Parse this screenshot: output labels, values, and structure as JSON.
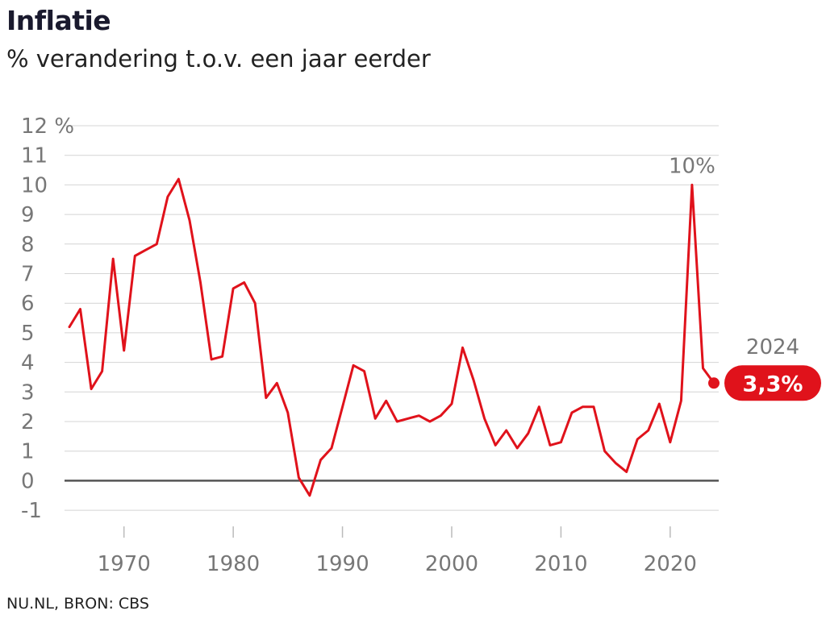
{
  "header": {
    "title": "Inflatie",
    "subtitle": "% verandering t.o.v. een jaar eerder"
  },
  "footer": {
    "source": "NU.NL, BRON: CBS"
  },
  "colors": {
    "series": "#e0121b",
    "grid": "#d4d4d4",
    "zero_line": "#555555",
    "tick_text": "#777777",
    "badge": "#e0121b"
  },
  "annotations": {
    "peak_label": "10%",
    "last_year_label": "2024",
    "last_value_badge": "3,3%"
  },
  "chart_data": {
    "type": "line",
    "title": "Inflatie",
    "subtitle": "% verandering t.o.v. een jaar eerder",
    "xlabel": "",
    "ylabel": "",
    "ylim": [
      -1,
      12
    ],
    "xlim": [
      1965,
      2024
    ],
    "grid": true,
    "y_ticks": [
      -1,
      0,
      1,
      2,
      3,
      4,
      5,
      6,
      7,
      8,
      9,
      10,
      11,
      12
    ],
    "y_tick_labels": [
      "-1",
      "0",
      "1",
      "2",
      "3",
      "4",
      "5",
      "6",
      "7",
      "8",
      "9",
      "10",
      "11",
      "12 %"
    ],
    "x_ticks": [
      1970,
      1980,
      1990,
      2000,
      2010,
      2020
    ],
    "x_tick_labels": [
      "1970",
      "1980",
      "1990",
      "2000",
      "2010",
      "2020"
    ],
    "series": [
      {
        "x": [
          1965,
          1966,
          1967,
          1968,
          1969,
          1970,
          1971,
          1972,
          1973,
          1974,
          1975,
          1976,
          1977,
          1978,
          1979,
          1980,
          1981,
          1982,
          1983,
          1984,
          1985,
          1986,
          1987,
          1988,
          1989,
          1990,
          1991,
          1992,
          1993,
          1994,
          1995,
          1996,
          1997,
          1998,
          1999,
          2000,
          2001,
          2002,
          2003,
          2004,
          2005,
          2006,
          2007,
          2008,
          2009,
          2010,
          2011,
          2012,
          2013,
          2014,
          2015,
          2016,
          2017,
          2018,
          2019,
          2020,
          2021,
          2022,
          2023,
          2024
        ],
        "values": [
          5.2,
          5.8,
          3.1,
          3.7,
          7.5,
          4.4,
          7.6,
          7.8,
          8.0,
          9.6,
          10.2,
          8.8,
          6.7,
          4.1,
          4.2,
          6.5,
          6.7,
          6.0,
          2.8,
          3.3,
          2.3,
          0.1,
          -0.5,
          0.7,
          1.1,
          2.5,
          3.9,
          3.7,
          2.1,
          2.7,
          2.0,
          2.1,
          2.2,
          2.0,
          2.2,
          2.6,
          4.5,
          3.4,
          2.1,
          1.2,
          1.7,
          1.1,
          1.6,
          2.5,
          1.2,
          1.3,
          2.3,
          2.5,
          2.5,
          1.0,
          0.6,
          0.3,
          1.4,
          1.7,
          2.6,
          1.3,
          2.7,
          10.0,
          3.8,
          3.3
        ]
      }
    ]
  }
}
